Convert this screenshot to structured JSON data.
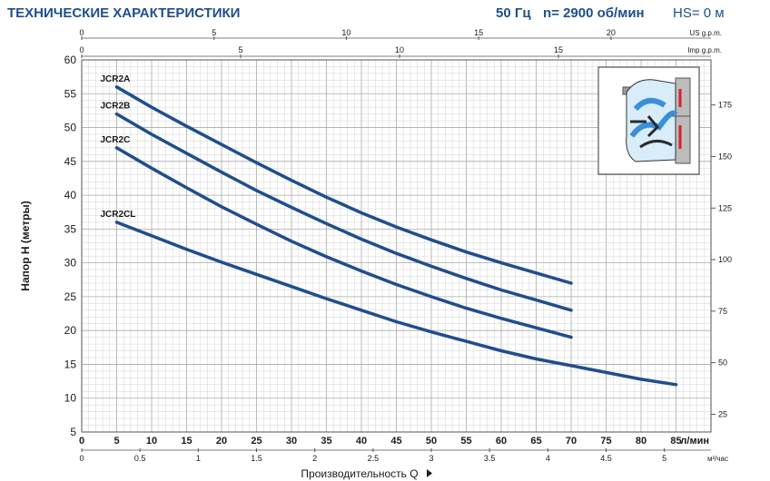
{
  "header": {
    "title": "ТЕХНИЧЕСКИЕ ХАРАКТЕРИСТИКИ",
    "frequency": "50 Гц",
    "speed": "n= 2900 об/мин",
    "hs": "HS= 0 м"
  },
  "colors": {
    "curve": "#1f4e8c",
    "grid": "#c8c8c8",
    "text": "#1a1a1a",
    "header": "#1f4e8c"
  },
  "chart_data": {
    "type": "line",
    "ylabel": "Напор  H (метры)",
    "xlabel": "Производительность  Q",
    "x_unit": "л/мин",
    "x2_unit": "м³/час",
    "top1_unit": "US g.p.m.",
    "top2_unit": "Imp g.p.m.",
    "xlim": [
      0,
      90
    ],
    "ylim": [
      5,
      60
    ],
    "grid": true,
    "x_ticks": [
      "0",
      "5",
      "10",
      "15",
      "20",
      "25",
      "30",
      "35",
      "40",
      "45",
      "50",
      "55",
      "60",
      "65",
      "70",
      "75",
      "80",
      "85"
    ],
    "x2_ticks": [
      "0",
      "0.5",
      "1",
      "1.5",
      "2",
      "2.5",
      "3",
      "3.5",
      "4",
      "4.5",
      "5"
    ],
    "top1_ticks": [
      "0",
      "5",
      "10",
      "15",
      "20"
    ],
    "top2_ticks": [
      "0",
      "5",
      "10",
      "15"
    ],
    "y_ticks": [
      "5",
      "10",
      "15",
      "20",
      "25",
      "30",
      "35",
      "40",
      "45",
      "50",
      "55",
      "60"
    ],
    "y2_ticks": [
      "25",
      "50",
      "75",
      "100",
      "125",
      "150",
      "175"
    ],
    "series": [
      {
        "name": "JCR2A",
        "x": [
          5,
          10,
          15,
          20,
          25,
          30,
          35,
          40,
          45,
          50,
          55,
          60,
          65,
          70
        ],
        "y": [
          56,
          53,
          50.2,
          47.5,
          44.8,
          42.2,
          39.7,
          37.4,
          35.3,
          33.4,
          31.6,
          30,
          28.5,
          27
        ]
      },
      {
        "name": "JCR2B",
        "x": [
          5,
          10,
          15,
          20,
          25,
          30,
          35,
          40,
          45,
          50,
          55,
          60,
          65,
          70
        ],
        "y": [
          52,
          49,
          46.2,
          43.4,
          40.7,
          38.2,
          35.8,
          33.5,
          31.4,
          29.5,
          27.7,
          26,
          24.5,
          23
        ]
      },
      {
        "name": "JCR2C",
        "x": [
          5,
          10,
          15,
          20,
          25,
          30,
          35,
          40,
          45,
          50,
          55,
          60,
          65,
          70
        ],
        "y": [
          47,
          44,
          41.1,
          38.3,
          35.7,
          33.2,
          30.9,
          28.8,
          26.8,
          25,
          23.3,
          21.8,
          20.4,
          19
        ]
      },
      {
        "name": "JCR2CL",
        "x": [
          5,
          10,
          15,
          20,
          25,
          30,
          35,
          40,
          45,
          50,
          55,
          60,
          65,
          70,
          75,
          80,
          85
        ],
        "y": [
          36,
          34,
          32,
          30.1,
          28.3,
          26.5,
          24.7,
          23,
          21.3,
          19.8,
          18.4,
          17,
          15.8,
          14.8,
          13.8,
          12.8,
          12
        ]
      }
    ]
  }
}
